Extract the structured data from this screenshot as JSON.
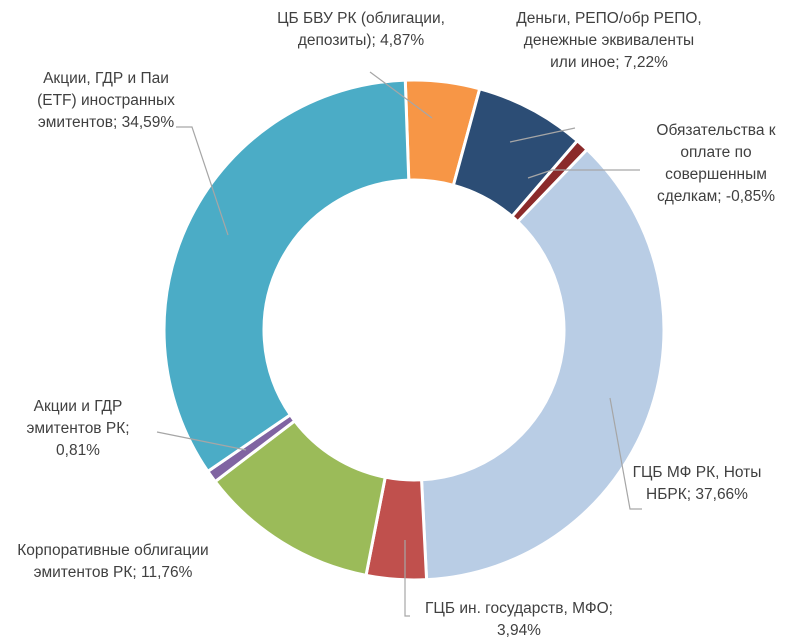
{
  "chart_data": {
    "type": "donut",
    "categories": [
      "ЦБ БВУ РК (облигации, депозиты)",
      "Деньги, РЕПО/обр РЕПО, денежные эквиваленты или иное",
      "Обязательства к оплате по совершенным сделкам",
      "ГЦБ МФ РК, Ноты НБРК",
      "ГЦБ ин. государств, МФО",
      "Корпоративные облигации эмитентов РК",
      "Акции и ГДР эмитентов РК",
      "Акции, ГДР и Паи (ETF) иностранных эмитентов"
    ],
    "values": [
      4.87,
      7.22,
      -0.85,
      37.66,
      3.94,
      11.76,
      0.81,
      34.59
    ],
    "value_labels": [
      "4,87%",
      "7,22%",
      "-0,85%",
      "37,66%",
      "3,94%",
      "11,76%",
      "0,81%",
      "34,59%"
    ],
    "label_separator": "; ",
    "colors": [
      "#f79646",
      "#2c4d75",
      "#8b2a2a",
      "#b9cde5",
      "#c0504d",
      "#9bbb59",
      "#8064a2",
      "#4bacc6"
    ]
  }
}
